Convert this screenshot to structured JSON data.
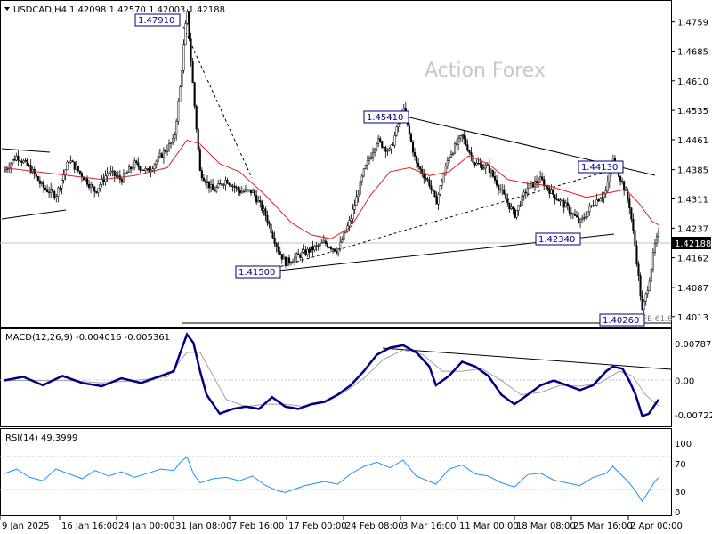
{
  "header": {
    "symbol": "USDCAD,H4",
    "ohlc": "1.42098 1.42570 1.42003 1.42188"
  },
  "watermark": "Action Forex",
  "colors": {
    "price": "#000000",
    "ma": "#e02020",
    "macd": "#000080",
    "signal": "#a0a0a0",
    "rsi": "#1e90ff",
    "trendline": "#000000",
    "label_border": "#000080",
    "watermark": "#c8c8c8",
    "grid": "#c0c0c0"
  },
  "chart_data": [
    {
      "type": "candlestick",
      "name": "price",
      "x_ticks": [
        "9 Jan 2025",
        "16 Jan 16:00",
        "24 Jan 00:00",
        "31 Jan 08:00",
        "7 Feb 16:00",
        "17 Feb 00:00",
        "24 Feb 08:00",
        "3 Mar 16:00",
        "11 Mar 00:00",
        "18 Mar 08:00",
        "25 Mar 16:00",
        "2 Apr 00:00"
      ],
      "y_ticks": [
        1.4759,
        1.4685,
        1.461,
        1.4535,
        1.4461,
        1.4385,
        1.4311,
        1.4237,
        1.4162,
        1.4087,
        1.4013
      ],
      "ylim": [
        1.399,
        1.481
      ],
      "current_price": 1.42188,
      "moving_average": true,
      "annotations": [
        "1.47910",
        "1.45410",
        "1.44130",
        "1.42340",
        "1.41500",
        "1.40260",
        "FE 61.8"
      ],
      "close_path": [
        [
          0,
          1.438
        ],
        [
          0.02,
          1.442
        ],
        [
          0.04,
          1.439
        ],
        [
          0.06,
          1.434
        ],
        [
          0.08,
          1.432
        ],
        [
          0.1,
          1.441
        ],
        [
          0.12,
          1.437
        ],
        [
          0.14,
          1.433
        ],
        [
          0.16,
          1.438
        ],
        [
          0.18,
          1.436
        ],
        [
          0.2,
          1.44
        ],
        [
          0.22,
          1.438
        ],
        [
          0.24,
          1.442
        ],
        [
          0.26,
          1.446
        ],
        [
          0.27,
          1.46
        ],
        [
          0.28,
          1.4791
        ],
        [
          0.29,
          1.458
        ],
        [
          0.3,
          1.438
        ],
        [
          0.32,
          1.433
        ],
        [
          0.34,
          1.436
        ],
        [
          0.36,
          1.433
        ],
        [
          0.38,
          1.433
        ],
        [
          0.4,
          1.427
        ],
        [
          0.42,
          1.418
        ],
        [
          0.43,
          1.415
        ],
        [
          0.46,
          1.4175
        ],
        [
          0.49,
          1.42
        ],
        [
          0.51,
          1.418
        ],
        [
          0.53,
          1.426
        ],
        [
          0.55,
          1.438
        ],
        [
          0.57,
          1.446
        ],
        [
          0.59,
          1.443
        ],
        [
          0.61,
          1.4541
        ],
        [
          0.63,
          1.44
        ],
        [
          0.65,
          1.435
        ],
        [
          0.66,
          1.43
        ],
        [
          0.68,
          1.442
        ],
        [
          0.7,
          1.447
        ],
        [
          0.72,
          1.44
        ],
        [
          0.74,
          1.439
        ],
        [
          0.76,
          1.433
        ],
        [
          0.78,
          1.427
        ],
        [
          0.8,
          1.434
        ],
        [
          0.82,
          1.436
        ],
        [
          0.84,
          1.432
        ],
        [
          0.86,
          1.429
        ],
        [
          0.88,
          1.425
        ],
        [
          0.9,
          1.43
        ],
        [
          0.92,
          1.433
        ],
        [
          0.93,
          1.4413
        ],
        [
          0.945,
          1.435
        ],
        [
          0.955,
          1.43
        ],
        [
          0.965,
          1.418
        ],
        [
          0.975,
          1.4026
        ],
        [
          0.985,
          1.41
        ],
        [
          0.995,
          1.42
        ],
        [
          1.0,
          1.4219
        ]
      ],
      "ma_path": [
        [
          0,
          1.439
        ],
        [
          0.05,
          1.438
        ],
        [
          0.1,
          1.437
        ],
        [
          0.15,
          1.436
        ],
        [
          0.2,
          1.437
        ],
        [
          0.25,
          1.439
        ],
        [
          0.28,
          1.446
        ],
        [
          0.3,
          1.445
        ],
        [
          0.33,
          1.44
        ],
        [
          0.36,
          1.438
        ],
        [
          0.4,
          1.432
        ],
        [
          0.44,
          1.425
        ],
        [
          0.47,
          1.422
        ],
        [
          0.5,
          1.421
        ],
        [
          0.53,
          1.424
        ],
        [
          0.56,
          1.432
        ],
        [
          0.59,
          1.438
        ],
        [
          0.62,
          1.439
        ],
        [
          0.65,
          1.437
        ],
        [
          0.68,
          1.438
        ],
        [
          0.71,
          1.442
        ],
        [
          0.74,
          1.44
        ],
        [
          0.77,
          1.436
        ],
        [
          0.8,
          1.435
        ],
        [
          0.83,
          1.4345
        ],
        [
          0.86,
          1.433
        ],
        [
          0.89,
          1.4315
        ],
        [
          0.92,
          1.4325
        ],
        [
          0.95,
          1.4335
        ],
        [
          0.97,
          1.43
        ],
        [
          0.99,
          1.4255
        ],
        [
          1.0,
          1.4245
        ]
      ]
    },
    {
      "type": "line",
      "name": "MACD(12,26,9)",
      "label": "MACD(12,26,9) -0.004016 -0.005361",
      "y_ticks": [
        0.007879,
        0.0,
        -0.007229
      ],
      "ylim": [
        -0.0095,
        0.0105
      ],
      "path": [
        [
          0,
          0.0
        ],
        [
          0.03,
          0.0008
        ],
        [
          0.06,
          -0.001
        ],
        [
          0.09,
          0.001
        ],
        [
          0.12,
          -0.0005
        ],
        [
          0.15,
          -0.0012
        ],
        [
          0.18,
          0.0005
        ],
        [
          0.21,
          -0.0005
        ],
        [
          0.24,
          0.001
        ],
        [
          0.26,
          0.002
        ],
        [
          0.27,
          0.006
        ],
        [
          0.28,
          0.0098
        ],
        [
          0.29,
          0.008
        ],
        [
          0.3,
          0.002
        ],
        [
          0.31,
          -0.003
        ],
        [
          0.33,
          -0.007
        ],
        [
          0.35,
          -0.006
        ],
        [
          0.37,
          -0.0055
        ],
        [
          0.39,
          -0.006
        ],
        [
          0.41,
          -0.0035
        ],
        [
          0.43,
          -0.0055
        ],
        [
          0.45,
          -0.006
        ],
        [
          0.47,
          -0.005
        ],
        [
          0.49,
          -0.0045
        ],
        [
          0.51,
          -0.003
        ],
        [
          0.53,
          -0.001
        ],
        [
          0.55,
          0.002
        ],
        [
          0.57,
          0.0055
        ],
        [
          0.59,
          0.007
        ],
        [
          0.61,
          0.0075
        ],
        [
          0.63,
          0.006
        ],
        [
          0.65,
          0.003
        ],
        [
          0.66,
          -0.001
        ],
        [
          0.68,
          0.001
        ],
        [
          0.7,
          0.004
        ],
        [
          0.72,
          0.003
        ],
        [
          0.74,
          0.001
        ],
        [
          0.76,
          -0.003
        ],
        [
          0.78,
          -0.005
        ],
        [
          0.8,
          -0.003
        ],
        [
          0.82,
          -0.001
        ],
        [
          0.84,
          0.0
        ],
        [
          0.86,
          -0.001
        ],
        [
          0.88,
          -0.002
        ],
        [
          0.9,
          -0.001
        ],
        [
          0.92,
          0.002
        ],
        [
          0.93,
          0.003
        ],
        [
          0.945,
          0.0025
        ],
        [
          0.955,
          0.0
        ],
        [
          0.965,
          -0.003
        ],
        [
          0.975,
          -0.0075
        ],
        [
          0.985,
          -0.007
        ],
        [
          0.995,
          -0.005
        ],
        [
          1.0,
          -0.004
        ]
      ],
      "signal_path": [
        [
          0,
          0.0
        ],
        [
          0.05,
          0.0
        ],
        [
          0.1,
          0.0
        ],
        [
          0.15,
          -0.0005
        ],
        [
          0.2,
          0.0
        ],
        [
          0.25,
          0.0008
        ],
        [
          0.28,
          0.006
        ],
        [
          0.3,
          0.006
        ],
        [
          0.32,
          0.001
        ],
        [
          0.34,
          -0.004
        ],
        [
          0.37,
          -0.0055
        ],
        [
          0.4,
          -0.005
        ],
        [
          0.43,
          -0.005
        ],
        [
          0.46,
          -0.0055
        ],
        [
          0.49,
          -0.0045
        ],
        [
          0.52,
          -0.0025
        ],
        [
          0.55,
          0.0005
        ],
        [
          0.58,
          0.0045
        ],
        [
          0.61,
          0.0065
        ],
        [
          0.64,
          0.0055
        ],
        [
          0.67,
          0.002
        ],
        [
          0.7,
          0.002
        ],
        [
          0.73,
          0.0025
        ],
        [
          0.76,
          0.0
        ],
        [
          0.79,
          -0.003
        ],
        [
          0.82,
          -0.0025
        ],
        [
          0.85,
          -0.001
        ],
        [
          0.88,
          -0.0012
        ],
        [
          0.91,
          -0.0005
        ],
        [
          0.94,
          0.002
        ],
        [
          0.96,
          0.001
        ],
        [
          0.98,
          -0.003
        ],
        [
          1.0,
          -0.0054
        ]
      ]
    },
    {
      "type": "line",
      "name": "RSI(14)",
      "label": "RSI(14) 49.3999",
      "y_ticks": [
        100,
        70,
        30,
        0
      ],
      "ylim": [
        0,
        100
      ],
      "path": [
        [
          0,
          55
        ],
        [
          0.02,
          62
        ],
        [
          0.04,
          50
        ],
        [
          0.06,
          45
        ],
        [
          0.08,
          62
        ],
        [
          0.1,
          55
        ],
        [
          0.12,
          48
        ],
        [
          0.14,
          60
        ],
        [
          0.16,
          52
        ],
        [
          0.18,
          58
        ],
        [
          0.2,
          50
        ],
        [
          0.22,
          56
        ],
        [
          0.24,
          62
        ],
        [
          0.26,
          60
        ],
        [
          0.27,
          72
        ],
        [
          0.28,
          80
        ],
        [
          0.29,
          55
        ],
        [
          0.3,
          42
        ],
        [
          0.32,
          48
        ],
        [
          0.34,
          50
        ],
        [
          0.36,
          45
        ],
        [
          0.38,
          52
        ],
        [
          0.4,
          38
        ],
        [
          0.42,
          30
        ],
        [
          0.43,
          28
        ],
        [
          0.46,
          38
        ],
        [
          0.49,
          44
        ],
        [
          0.51,
          40
        ],
        [
          0.53,
          55
        ],
        [
          0.55,
          66
        ],
        [
          0.57,
          72
        ],
        [
          0.59,
          64
        ],
        [
          0.61,
          75
        ],
        [
          0.63,
          52
        ],
        [
          0.65,
          44
        ],
        [
          0.66,
          40
        ],
        [
          0.68,
          62
        ],
        [
          0.7,
          68
        ],
        [
          0.72,
          55
        ],
        [
          0.74,
          52
        ],
        [
          0.76,
          42
        ],
        [
          0.78,
          36
        ],
        [
          0.8,
          54
        ],
        [
          0.82,
          56
        ],
        [
          0.84,
          46
        ],
        [
          0.86,
          42
        ],
        [
          0.88,
          38
        ],
        [
          0.9,
          50
        ],
        [
          0.92,
          56
        ],
        [
          0.93,
          66
        ],
        [
          0.945,
          52
        ],
        [
          0.955,
          42
        ],
        [
          0.965,
          30
        ],
        [
          0.975,
          15
        ],
        [
          0.985,
          30
        ],
        [
          0.995,
          45
        ],
        [
          1.0,
          49.4
        ]
      ]
    }
  ]
}
